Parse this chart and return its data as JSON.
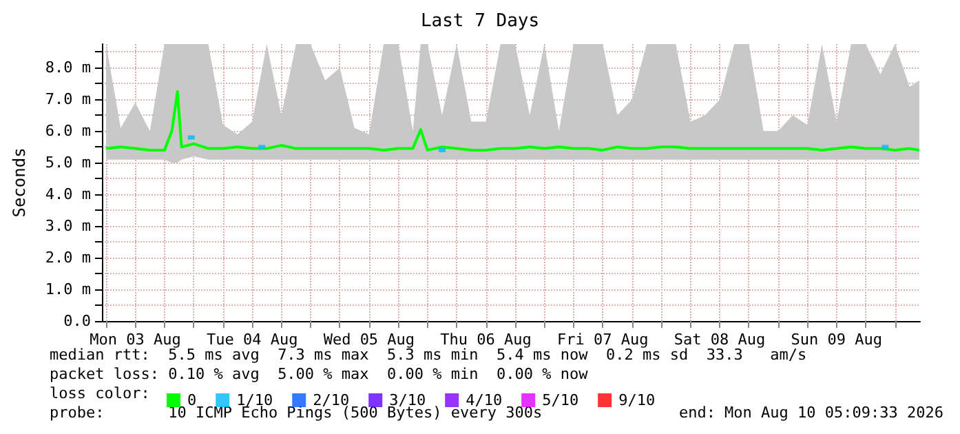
{
  "chart_data": {
    "type": "line",
    "title": "Last 7 Days",
    "ylabel": "Seconds",
    "legend_title": "loss color:",
    "legend": "bottom left",
    "grid": true,
    "xlim": [
      "2026-08-03T05:09",
      "2026-08-10T05:09"
    ],
    "xticks": [
      {
        "value": "2026-08-03T06:00",
        "label": null
      },
      {
        "value": "2026-08-03T12:00",
        "label": "Mon 03 Aug"
      },
      {
        "value": "2026-08-03T18:00",
        "label": null
      },
      {
        "value": "2026-08-04T00:00",
        "label": null
      },
      {
        "value": "2026-08-04T06:00",
        "label": null
      },
      {
        "value": "2026-08-04T12:00",
        "label": "Tue 04 Aug"
      },
      {
        "value": "2026-08-04T18:00",
        "label": null
      },
      {
        "value": "2026-08-05T00:00",
        "label": null
      },
      {
        "value": "2026-08-05T06:00",
        "label": null
      },
      {
        "value": "2026-08-05T12:00",
        "label": "Wed 05 Aug"
      },
      {
        "value": "2026-08-05T18:00",
        "label": null
      },
      {
        "value": "2026-08-06T00:00",
        "label": null
      },
      {
        "value": "2026-08-06T06:00",
        "label": null
      },
      {
        "value": "2026-08-06T12:00",
        "label": "Thu 06 Aug"
      },
      {
        "value": "2026-08-06T18:00",
        "label": null
      },
      {
        "value": "2026-08-07T00:00",
        "label": null
      },
      {
        "value": "2026-08-07T06:00",
        "label": null
      },
      {
        "value": "2026-08-07T12:00",
        "label": "Fri 07 Aug"
      },
      {
        "value": "2026-08-07T18:00",
        "label": null
      },
      {
        "value": "2026-08-08T00:00",
        "label": null
      },
      {
        "value": "2026-08-08T06:00",
        "label": null
      },
      {
        "value": "2026-08-08T12:00",
        "label": "Sat 08 Aug"
      },
      {
        "value": "2026-08-08T18:00",
        "label": null
      },
      {
        "value": "2026-08-09T00:00",
        "label": null
      },
      {
        "value": "2026-08-09T06:00",
        "label": null
      },
      {
        "value": "2026-08-09T12:00",
        "label": "Sun 09 Aug"
      },
      {
        "value": "2026-08-09T18:00",
        "label": null
      },
      {
        "value": "2026-08-10T00:00",
        "label": null
      }
    ],
    "ylim": [
      0,
      8.75
    ],
    "yticks": [
      {
        "value": 0,
        "label": "0.0"
      },
      {
        "value": 0.5,
        "label": null
      },
      {
        "value": 1,
        "label": "1.0 m"
      },
      {
        "value": 1.5,
        "label": null
      },
      {
        "value": 2,
        "label": "2.0 m"
      },
      {
        "value": 2.5,
        "label": null
      },
      {
        "value": 3,
        "label": "3.0 m"
      },
      {
        "value": 3.5,
        "label": null
      },
      {
        "value": 4,
        "label": "4.0 m"
      },
      {
        "value": 4.5,
        "label": null
      },
      {
        "value": 5,
        "label": "5.0 m"
      },
      {
        "value": 5.5,
        "label": null
      },
      {
        "value": 6,
        "label": "6.0 m"
      },
      {
        "value": 6.5,
        "label": null
      },
      {
        "value": 7,
        "label": "7.0 m"
      },
      {
        "value": 7.5,
        "label": null
      },
      {
        "value": 8,
        "label": "8.0 m"
      },
      {
        "value": 8.5,
        "label": null
      }
    ],
    "series": [
      {
        "name": "0",
        "color": "#00ff00",
        "x": [
          "2026-08-03T06:00",
          "2026-08-03T09:00",
          "2026-08-03T12:00",
          "2026-08-03T15:00",
          "2026-08-03T18:00",
          "2026-08-03T19:30",
          "2026-08-03T20:40",
          "2026-08-03T21:30",
          "2026-08-04T00:00",
          "2026-08-04T03:00",
          "2026-08-04T06:00",
          "2026-08-04T09:00",
          "2026-08-04T12:00",
          "2026-08-04T15:00",
          "2026-08-04T18:00",
          "2026-08-04T21:00",
          "2026-08-05T00:00",
          "2026-08-05T03:00",
          "2026-08-05T06:00",
          "2026-08-05T09:00",
          "2026-08-05T12:00",
          "2026-08-05T15:00",
          "2026-08-05T18:00",
          "2026-08-05T21:00",
          "2026-08-05T22:36",
          "2026-08-06T00:00",
          "2026-08-06T03:00",
          "2026-08-06T06:00",
          "2026-08-06T09:00",
          "2026-08-06T12:00",
          "2026-08-06T15:00",
          "2026-08-06T18:00",
          "2026-08-06T21:00",
          "2026-08-07T00:00",
          "2026-08-07T03:00",
          "2026-08-07T06:00",
          "2026-08-07T09:00",
          "2026-08-07T12:00",
          "2026-08-07T15:00",
          "2026-08-07T18:00",
          "2026-08-07T21:00",
          "2026-08-08T00:00",
          "2026-08-08T03:00",
          "2026-08-08T06:00",
          "2026-08-08T09:00",
          "2026-08-08T12:00",
          "2026-08-08T15:00",
          "2026-08-08T18:00",
          "2026-08-08T21:00",
          "2026-08-09T00:00",
          "2026-08-09T03:00",
          "2026-08-09T06:00",
          "2026-08-09T09:00",
          "2026-08-09T12:00",
          "2026-08-09T15:00",
          "2026-08-09T18:00",
          "2026-08-09T21:00",
          "2026-08-10T00:00",
          "2026-08-10T03:00",
          "2026-08-10T05:00"
        ],
        "values": [
          5.45,
          5.5,
          5.45,
          5.4,
          5.4,
          6.0,
          7.25,
          5.5,
          5.6,
          5.45,
          5.45,
          5.5,
          5.45,
          5.45,
          5.55,
          5.45,
          5.45,
          5.45,
          5.45,
          5.45,
          5.45,
          5.4,
          5.45,
          5.45,
          6.05,
          5.4,
          5.5,
          5.45,
          5.4,
          5.4,
          5.45,
          5.45,
          5.5,
          5.45,
          5.5,
          5.45,
          5.45,
          5.4,
          5.5,
          5.45,
          5.45,
          5.5,
          5.5,
          5.45,
          5.45,
          5.45,
          5.45,
          5.45,
          5.45,
          5.45,
          5.45,
          5.45,
          5.4,
          5.45,
          5.5,
          5.45,
          5.45,
          5.4,
          5.45,
          5.4
        ],
        "lower": [
          5.1,
          5.1,
          5.1,
          5.1,
          5.1,
          5.0,
          5.0,
          5.1,
          5.2,
          5.1,
          5.1,
          5.1,
          5.1,
          5.1,
          5.1,
          5.1,
          5.1,
          5.1,
          5.1,
          5.1,
          5.1,
          5.1,
          5.1,
          5.1,
          5.1,
          5.1,
          5.1,
          5.1,
          5.1,
          5.1,
          5.1,
          5.1,
          5.1,
          5.1,
          5.1,
          5.1,
          5.1,
          5.1,
          5.1,
          5.1,
          5.1,
          5.1,
          5.1,
          5.1,
          5.1,
          5.1,
          5.1,
          5.1,
          5.1,
          5.1,
          5.1,
          5.1,
          5.1,
          5.1,
          5.1,
          5.1,
          5.1,
          5.1,
          5.1,
          5.1
        ],
        "upper": [
          8.75,
          6.1,
          6.9,
          6.0,
          8.75,
          8.75,
          8.75,
          8.75,
          8.75,
          8.75,
          6.2,
          5.9,
          6.3,
          8.75,
          6.5,
          8.75,
          8.75,
          7.6,
          8.0,
          6.1,
          5.9,
          8.75,
          8.75,
          6.0,
          8.75,
          8.75,
          6.5,
          8.75,
          6.3,
          6.3,
          8.75,
          8.75,
          6.5,
          8.75,
          6.0,
          8.75,
          8.75,
          8.75,
          6.5,
          7.0,
          8.75,
          8.75,
          8.75,
          6.3,
          6.5,
          7.0,
          8.75,
          8.75,
          6.0,
          6.0,
          6.5,
          6.2,
          8.75,
          6.3,
          8.75,
          8.75,
          7.8,
          8.75,
          7.4,
          7.6
        ]
      },
      {
        "name": "1/10",
        "type": "scatter",
        "color": "#00b8ff",
        "x": [
          "2026-08-03T23:30",
          "2026-08-04T14:00",
          "2026-08-06T03:00",
          "2026-08-09T22:00"
        ],
        "values": [
          5.8,
          5.5,
          5.4,
          5.5
        ]
      },
      {
        "name": "2/10",
        "type": "scatter",
        "color": "#0059ff"
      },
      {
        "name": "3/10",
        "type": "scatter",
        "color": "#5e00ff"
      },
      {
        "name": "4/10",
        "type": "scatter",
        "color": "#7e00ff"
      },
      {
        "name": "5/10",
        "type": "scatter",
        "color": "#dd00ff"
      },
      {
        "name": "9/10",
        "type": "scatter",
        "color": "#ff0000"
      }
    ],
    "annotations": [
      "median rtt:  5.5 ms avg  7.3 ms max  5.3 ms min  5.4 ms now  0.2 ms sd  33.3   am/s",
      "packet loss: 0.10 % avg  5.00 % max  0.00 % min  0.00 % now",
      "probe:       10 ICMP Echo Pings (500 Bytes) every 300s",
      "end: Mon Aug 10 05:09:33 2026"
    ]
  }
}
